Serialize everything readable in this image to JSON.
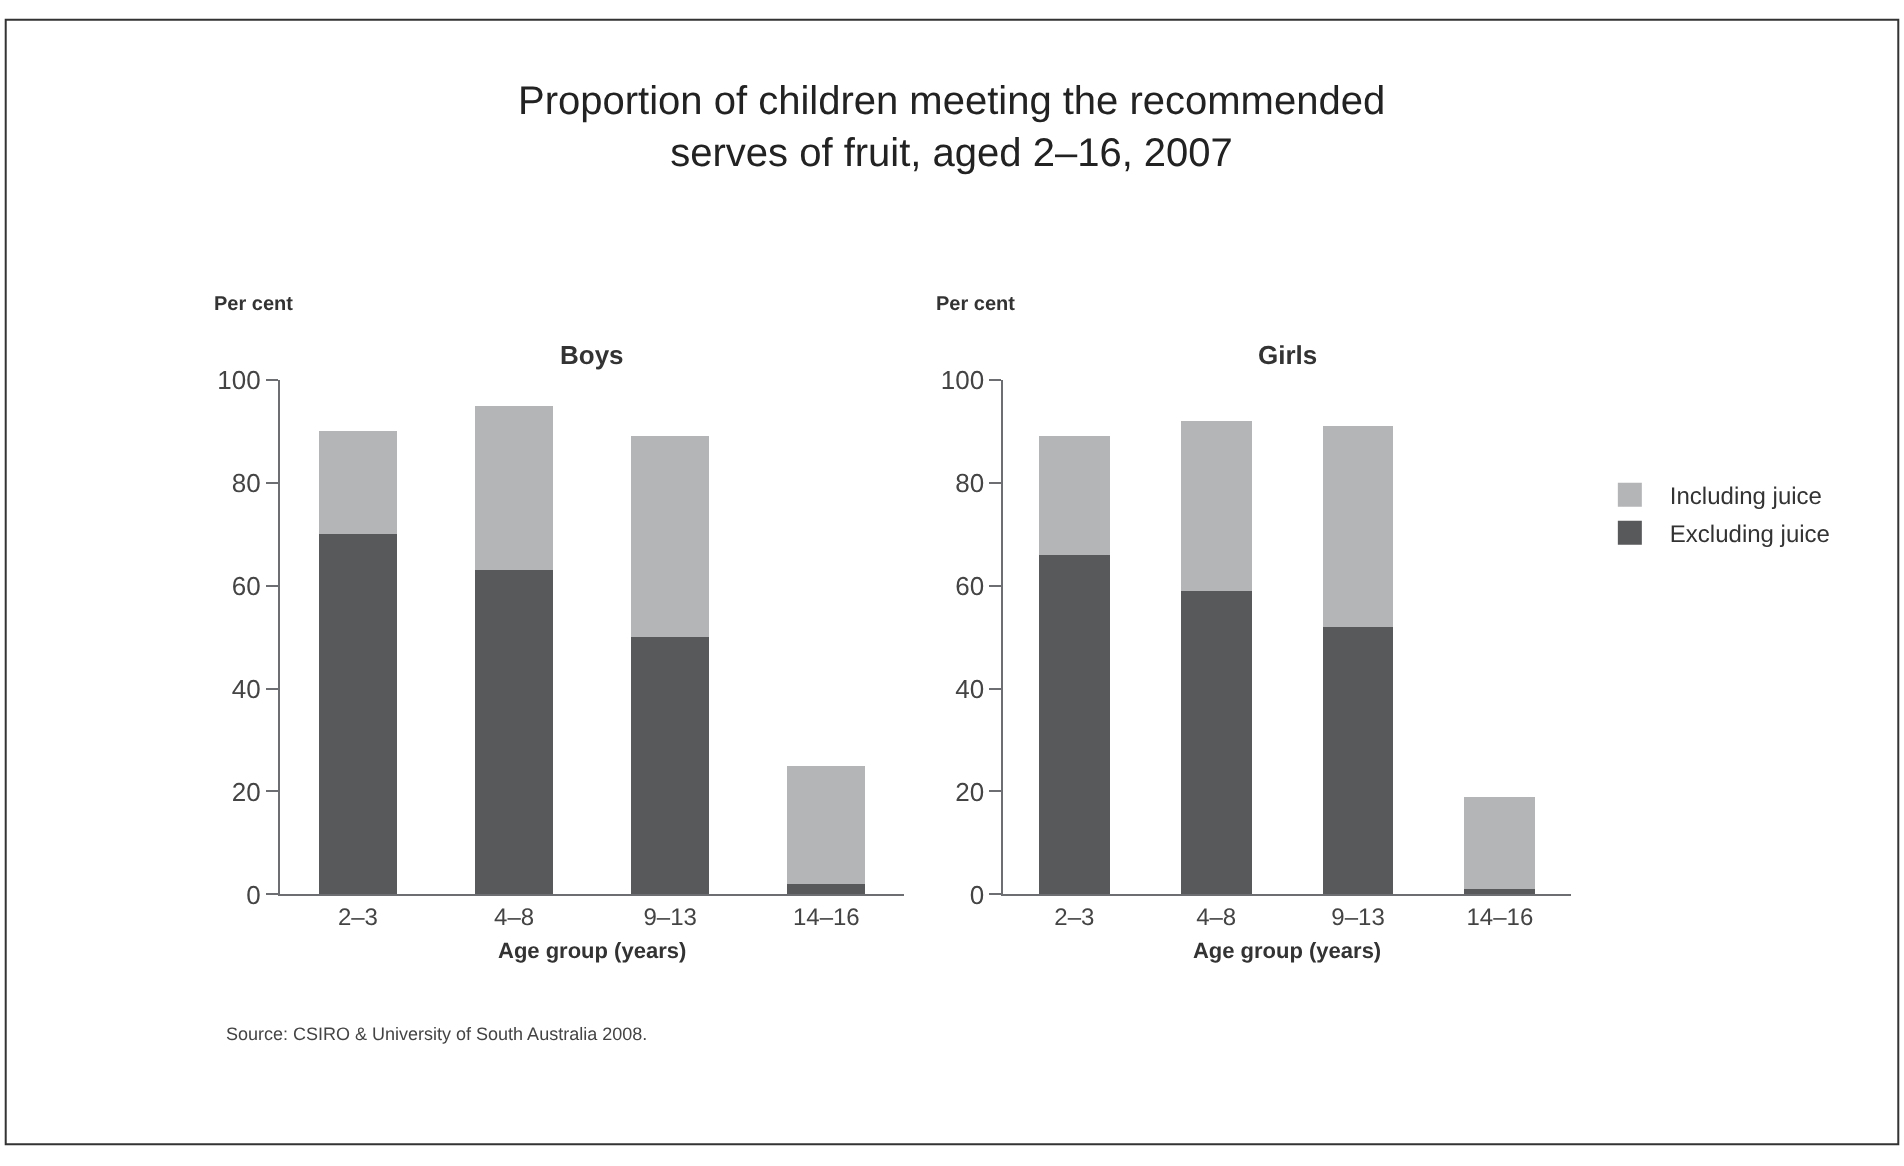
{
  "chart_data": [
    {
      "type": "bar",
      "title": "Proportion of children meeting the recommended\nserves of fruit, aged 2–16, 2007",
      "subtitle": "Boys",
      "xlabel": "Age group (years)",
      "ylabel": "Per cent",
      "categories": [
        "2–3",
        "4–8",
        "9–13",
        "14–16"
      ],
      "stacked": true,
      "ylim": [
        0,
        100
      ],
      "yticks": [
        0,
        20,
        40,
        60,
        80,
        100
      ],
      "series": [
        {
          "color": "#58595b",
          "values": [
            70,
            63,
            50,
            2
          ]
        },
        {
          "color": "#b4b5b7",
          "values": [
            20,
            32,
            39,
            23
          ]
        }
      ],
      "annotations": [
        "Source: CSIRO & University of South Australia 2008."
      ]
    },
    {
      "type": "bar",
      "subtitle": "Girls",
      "xlabel": "Age group (years)",
      "ylabel": "Per cent",
      "categories": [
        "2–3",
        "4–8",
        "9–13",
        "14–16"
      ],
      "stacked": true,
      "ylim": [
        0,
        100
      ],
      "yticks": [
        0,
        20,
        40,
        60,
        80,
        100
      ],
      "legend": "right",
      "series": [
        {
          "name": "Excluding juice",
          "color": "#58595b",
          "values": [
            66,
            59,
            52,
            1
          ]
        },
        {
          "name": "Including juice",
          "color": "#b4b5b7",
          "values": [
            23,
            33,
            39,
            18
          ]
        }
      ]
    }
  ]
}
